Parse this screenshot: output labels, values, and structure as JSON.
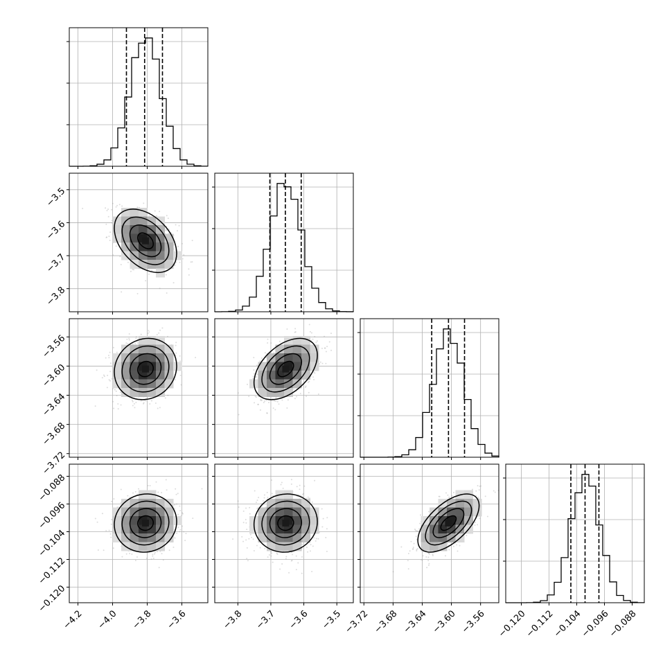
{
  "chart_data": {
    "type": "corner",
    "grid": true,
    "parameters": [
      {
        "range": [
          -4.25,
          -3.45
        ],
        "ticks": [
          -4.2,
          -4.0,
          -3.8,
          -3.6
        ],
        "tick_labels": [
          "−4.2",
          "−4.0",
          "−3.8",
          "−3.6"
        ],
        "mean": -3.81,
        "sd": 0.09,
        "quantiles": [
          -3.92,
          -3.815,
          -3.712
        ],
        "hist_tick_count": 3
      },
      {
        "range": [
          -3.87,
          -3.45
        ],
        "ticks": [
          -3.8,
          -3.7,
          -3.6,
          -3.5
        ],
        "tick_labels": [
          "−3.8",
          "−3.7",
          "−3.6",
          "−3.5"
        ],
        "mean": -3.655,
        "sd": 0.048,
        "quantiles": [
          -3.703,
          -3.656,
          -3.608
        ],
        "hist_tick_count": 3
      },
      {
        "range": [
          -3.725,
          -3.535
        ],
        "ticks": [
          -3.72,
          -3.68,
          -3.64,
          -3.6,
          -3.56
        ],
        "tick_labels": [
          "−3.72",
          "−3.68",
          "−3.64",
          "−3.60",
          "−3.56"
        ],
        "mean": -3.604,
        "sd": 0.021,
        "quantiles": [
          -3.627,
          -3.604,
          -3.582
        ],
        "hist_tick_count": 3
      },
      {
        "range": [
          -0.1245,
          -0.0845
        ],
        "ticks": [
          -0.12,
          -0.112,
          -0.104,
          -0.096,
          -0.088
        ],
        "tick_labels": [
          "−0.120",
          "−0.112",
          "−0.104",
          "−0.096",
          "−0.088"
        ],
        "mean": -0.1015,
        "sd": 0.0042,
        "quantiles": [
          -0.1057,
          -0.1016,
          -0.0976
        ],
        "hist_tick_count": 3
      }
    ],
    "pairs": [
      {
        "row": 1,
        "col": 0,
        "corr": -0.4
      },
      {
        "row": 2,
        "col": 0,
        "corr": 0.1
      },
      {
        "row": 2,
        "col": 1,
        "corr": 0.45
      },
      {
        "row": 3,
        "col": 0,
        "corr": 0.05
      },
      {
        "row": 3,
        "col": 1,
        "corr": 0.05
      },
      {
        "row": 3,
        "col": 2,
        "corr": 0.6
      }
    ],
    "colors": {
      "line": "#000000",
      "grid": "#b0b0b0",
      "points": "#9a9a9a",
      "density_dark": "#1a1a1a"
    }
  }
}
